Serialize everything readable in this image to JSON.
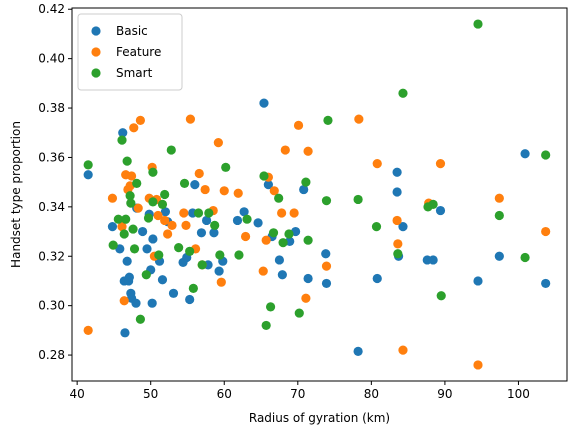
{
  "chart_data": {
    "type": "scatter",
    "title": "",
    "xlabel": "Radius of gyration (km)",
    "ylabel": "Handset type proportion",
    "xlim": [
      39.3,
      106.6
    ],
    "ylim": [
      0.2695,
      0.4205
    ],
    "xticks": [
      40,
      50,
      60,
      70,
      80,
      90,
      100
    ],
    "yticks": [
      0.28,
      0.3,
      0.32,
      0.34,
      0.36,
      0.38,
      0.4,
      0.42
    ],
    "grid": false,
    "legend": {
      "placement": "top-left"
    },
    "series": [
      {
        "name": "Basic",
        "color": "#1f77b4",
        "points": [
          [
            41.5,
            0.353
          ],
          [
            44.8,
            0.332
          ],
          [
            45.8,
            0.323
          ],
          [
            46.2,
            0.37
          ],
          [
            46.4,
            0.31
          ],
          [
            46.5,
            0.289
          ],
          [
            46.8,
            0.318
          ],
          [
            47.0,
            0.31
          ],
          [
            47.1,
            0.3115
          ],
          [
            47.3,
            0.305
          ],
          [
            47.4,
            0.303
          ],
          [
            48.0,
            0.301
          ],
          [
            48.1,
            0.3395
          ],
          [
            48.9,
            0.33
          ],
          [
            49.5,
            0.323
          ],
          [
            49.8,
            0.337
          ],
          [
            50.0,
            0.3145
          ],
          [
            50.2,
            0.301
          ],
          [
            50.3,
            0.327
          ],
          [
            51.2,
            0.318
          ],
          [
            51.6,
            0.3105
          ],
          [
            52.0,
            0.338
          ],
          [
            52.3,
            0.334
          ],
          [
            53.1,
            0.305
          ],
          [
            54.4,
            0.3175
          ],
          [
            54.9,
            0.3195
          ],
          [
            55.3,
            0.3025
          ],
          [
            55.7,
            0.3375
          ],
          [
            56.0,
            0.349
          ],
          [
            56.9,
            0.3295
          ],
          [
            57.6,
            0.3345
          ],
          [
            57.8,
            0.3165
          ],
          [
            58.6,
            0.3295
          ],
          [
            59.3,
            0.314
          ],
          [
            59.8,
            0.318
          ],
          [
            61.8,
            0.3345
          ],
          [
            62.7,
            0.338
          ],
          [
            64.6,
            0.3335
          ],
          [
            65.4,
            0.382
          ],
          [
            66.0,
            0.349
          ],
          [
            66.5,
            0.328
          ],
          [
            67.5,
            0.3185
          ],
          [
            67.9,
            0.3125
          ],
          [
            68.9,
            0.326
          ],
          [
            69.7,
            0.33
          ],
          [
            70.8,
            0.347
          ],
          [
            71.4,
            0.311
          ],
          [
            73.8,
            0.321
          ],
          [
            73.9,
            0.309
          ],
          [
            78.2,
            0.2815
          ],
          [
            80.8,
            0.311
          ],
          [
            83.5,
            0.354
          ],
          [
            83.5,
            0.346
          ],
          [
            83.7,
            0.32
          ],
          [
            84.3,
            0.332
          ],
          [
            87.6,
            0.3185
          ],
          [
            88.4,
            0.3185
          ],
          [
            89.4,
            0.3385
          ],
          [
            94.5,
            0.31
          ],
          [
            97.4,
            0.32
          ],
          [
            100.9,
            0.3615
          ],
          [
            103.7,
            0.309
          ]
        ]
      },
      {
        "name": "Feature",
        "color": "#ff7f0e",
        "points": [
          [
            41.5,
            0.29
          ],
          [
            44.8,
            0.3435
          ],
          [
            46.1,
            0.332
          ],
          [
            46.4,
            0.302
          ],
          [
            46.6,
            0.353
          ],
          [
            46.9,
            0.347
          ],
          [
            47.2,
            0.3485
          ],
          [
            47.4,
            0.3525
          ],
          [
            47.7,
            0.372
          ],
          [
            48.3,
            0.3395
          ],
          [
            48.6,
            0.375
          ],
          [
            49.8,
            0.3435
          ],
          [
            50.2,
            0.356
          ],
          [
            50.5,
            0.32
          ],
          [
            50.8,
            0.343
          ],
          [
            51.0,
            0.3365
          ],
          [
            51.9,
            0.3345
          ],
          [
            52.3,
            0.329
          ],
          [
            52.9,
            0.3325
          ],
          [
            54.5,
            0.3375
          ],
          [
            54.8,
            0.3325
          ],
          [
            55.4,
            0.3755
          ],
          [
            56.1,
            0.323
          ],
          [
            56.6,
            0.3535
          ],
          [
            57.0,
            0.3165
          ],
          [
            57.4,
            0.347
          ],
          [
            58.5,
            0.3385
          ],
          [
            59.2,
            0.366
          ],
          [
            59.6,
            0.3095
          ],
          [
            60.0,
            0.3465
          ],
          [
            61.9,
            0.3455
          ],
          [
            62.9,
            0.328
          ],
          [
            65.3,
            0.314
          ],
          [
            65.7,
            0.3265
          ],
          [
            66.0,
            0.352
          ],
          [
            66.8,
            0.3465
          ],
          [
            67.8,
            0.3375
          ],
          [
            68.3,
            0.363
          ],
          [
            69.5,
            0.3375
          ],
          [
            70.1,
            0.373
          ],
          [
            71.1,
            0.303
          ],
          [
            71.4,
            0.3625
          ],
          [
            73.9,
            0.316
          ],
          [
            78.3,
            0.3755
          ],
          [
            80.8,
            0.3575
          ],
          [
            83.5,
            0.3345
          ],
          [
            83.6,
            0.325
          ],
          [
            84.3,
            0.282
          ],
          [
            87.8,
            0.3415
          ],
          [
            89.4,
            0.3575
          ],
          [
            94.5,
            0.276
          ],
          [
            97.4,
            0.3435
          ],
          [
            103.7,
            0.33
          ]
        ]
      },
      {
        "name": "Smart",
        "color": "#2ca02c",
        "points": [
          [
            41.5,
            0.357
          ],
          [
            44.9,
            0.3245
          ],
          [
            45.6,
            0.335
          ],
          [
            46.1,
            0.367
          ],
          [
            46.4,
            0.329
          ],
          [
            46.6,
            0.335
          ],
          [
            46.8,
            0.3585
          ],
          [
            47.2,
            0.3445
          ],
          [
            47.3,
            0.3415
          ],
          [
            47.6,
            0.331
          ],
          [
            47.8,
            0.323
          ],
          [
            48.1,
            0.3495
          ],
          [
            48.6,
            0.2945
          ],
          [
            49.4,
            0.3125
          ],
          [
            49.7,
            0.3355
          ],
          [
            50.3,
            0.354
          ],
          [
            50.3,
            0.342
          ],
          [
            51.1,
            0.3205
          ],
          [
            51.6,
            0.341
          ],
          [
            51.9,
            0.345
          ],
          [
            52.8,
            0.363
          ],
          [
            53.8,
            0.3235
          ],
          [
            54.6,
            0.3495
          ],
          [
            55.3,
            0.322
          ],
          [
            55.8,
            0.307
          ],
          [
            56.5,
            0.3375
          ],
          [
            57.0,
            0.3165
          ],
          [
            57.9,
            0.3375
          ],
          [
            58.7,
            0.3325
          ],
          [
            59.4,
            0.3205
          ],
          [
            60.2,
            0.356
          ],
          [
            62.0,
            0.3205
          ],
          [
            63.1,
            0.335
          ],
          [
            65.4,
            0.3525
          ],
          [
            65.7,
            0.292
          ],
          [
            66.3,
            0.2995
          ],
          [
            66.7,
            0.3295
          ],
          [
            67.4,
            0.3435
          ],
          [
            68.0,
            0.3255
          ],
          [
            68.8,
            0.329
          ],
          [
            70.2,
            0.297
          ],
          [
            71.1,
            0.35
          ],
          [
            71.4,
            0.3265
          ],
          [
            73.9,
            0.3425
          ],
          [
            74.1,
            0.375
          ],
          [
            78.2,
            0.343
          ],
          [
            80.7,
            0.332
          ],
          [
            83.6,
            0.321
          ],
          [
            84.3,
            0.386
          ],
          [
            87.7,
            0.34
          ],
          [
            88.4,
            0.341
          ],
          [
            89.5,
            0.304
          ],
          [
            94.5,
            0.414
          ],
          [
            97.4,
            0.3365
          ],
          [
            100.9,
            0.3195
          ],
          [
            103.7,
            0.361
          ]
        ]
      }
    ]
  }
}
